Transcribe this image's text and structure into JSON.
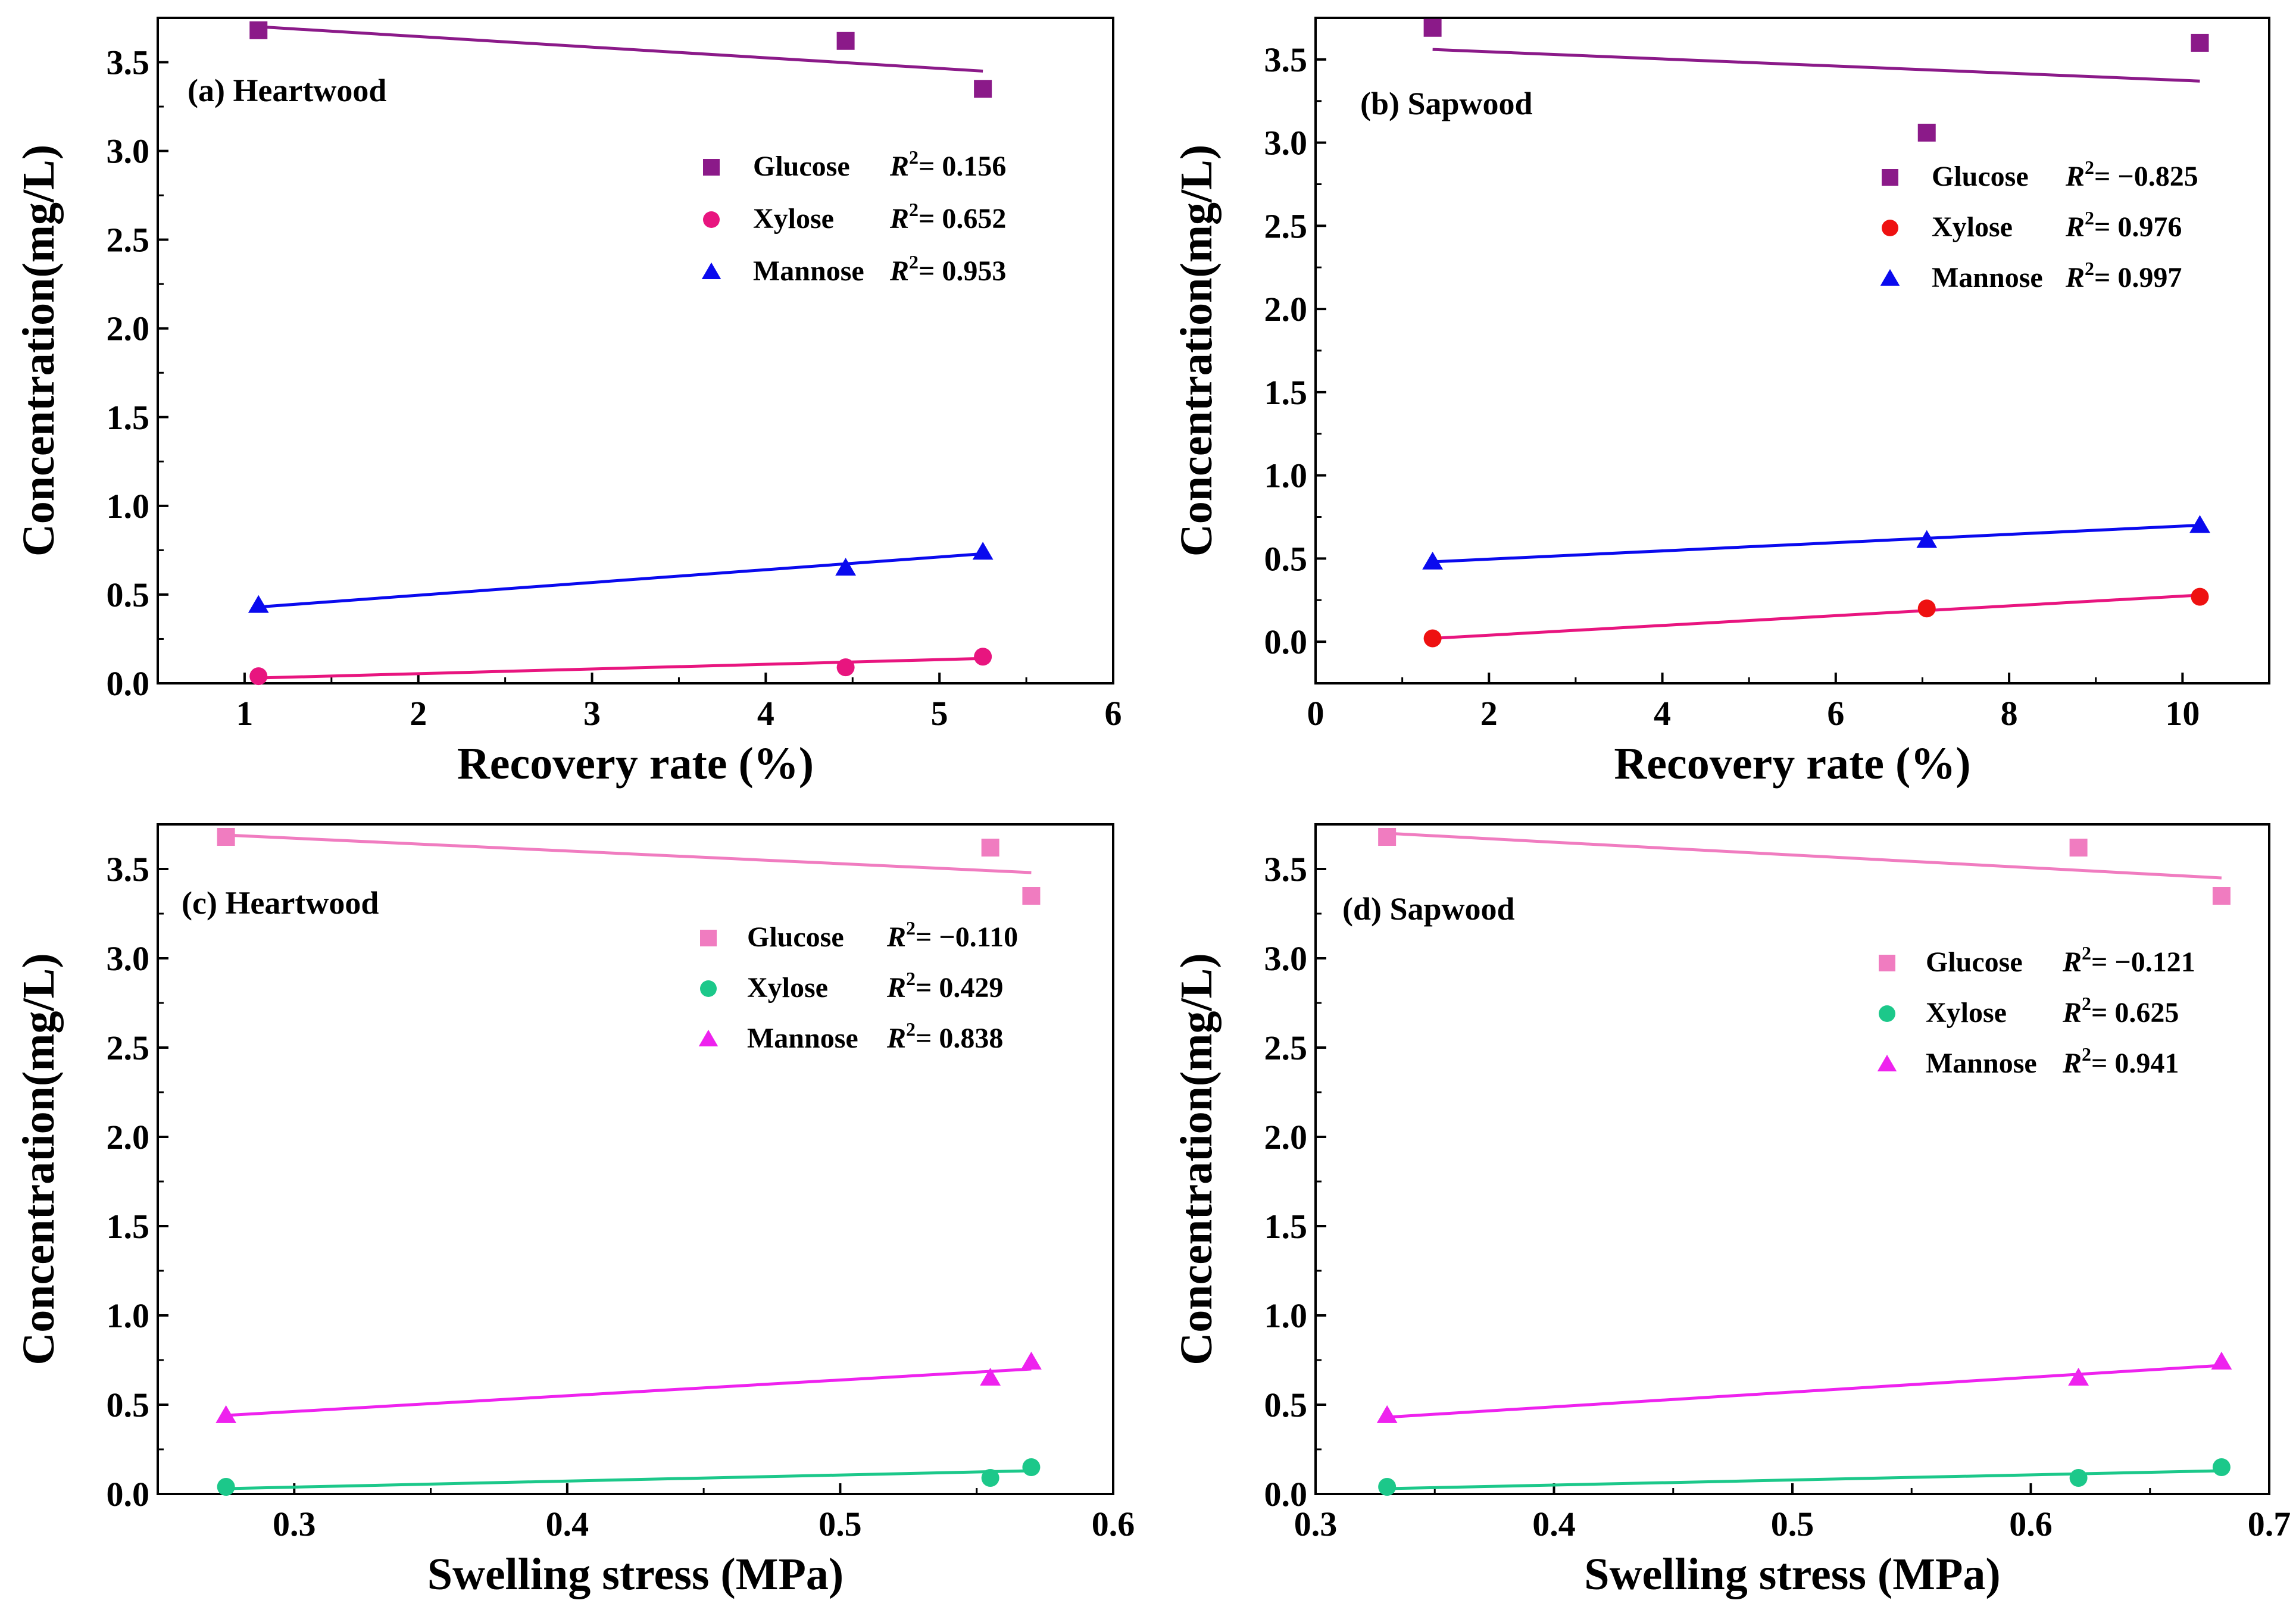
{
  "figure": {
    "legend_r2_symbol": "R",
    "legend_r2_exponent": "2",
    "legend_r2_equals": "="
  },
  "chart_data": [
    {
      "type": "scatter",
      "panel_id": "a",
      "title": "(a) Heartwood",
      "xlabel": "Recovery rate (%)",
      "ylabel": "Concentration(mg/L)",
      "xlim": [
        0.5,
        6
      ],
      "ylim": [
        0,
        3.75
      ],
      "xticks": [
        1,
        2,
        3,
        4,
        5,
        6
      ],
      "xtick_labels": [
        "1",
        "2",
        "3",
        "4",
        "5",
        "6"
      ],
      "yticks": [
        0.0,
        0.5,
        1.0,
        1.5,
        2.0,
        2.5,
        3.0,
        3.5
      ],
      "ytick_labels": [
        "0.0",
        "0.5",
        "1.0",
        "1.5",
        "2.0",
        "2.5",
        "3.0",
        "3.5"
      ],
      "grid": false,
      "legend_position": "upper-right",
      "series": [
        {
          "name": "Glucose",
          "r2": "0.156",
          "marker": "square",
          "color": "#8B1A89",
          "points": [
            [
              1.08,
              3.68
            ],
            [
              4.46,
              3.62
            ],
            [
              5.25,
              3.35
            ]
          ],
          "fit": [
            [
              1.08,
              3.7
            ],
            [
              5.25,
              3.45
            ]
          ]
        },
        {
          "name": "Xylose",
          "r2": "0.652",
          "marker": "circle",
          "color": "#E8157F",
          "points": [
            [
              1.08,
              0.04
            ],
            [
              4.46,
              0.09
            ],
            [
              5.25,
              0.15
            ]
          ],
          "fit": [
            [
              1.08,
              0.03
            ],
            [
              5.25,
              0.14
            ]
          ]
        },
        {
          "name": "Mannose",
          "r2": "0.953",
          "marker": "triangle",
          "color": "#0A0AEE",
          "points": [
            [
              1.08,
              0.44
            ],
            [
              4.46,
              0.65
            ],
            [
              5.25,
              0.74
            ]
          ],
          "fit": [
            [
              1.08,
              0.43
            ],
            [
              5.25,
              0.73
            ]
          ]
        }
      ]
    },
    {
      "type": "scatter",
      "panel_id": "b",
      "title": "(b) Sapwood",
      "xlabel": "Recovery rate (%)",
      "ylabel": "Concentration(mg/L)",
      "xlim": [
        0,
        11
      ],
      "ylim": [
        -0.25,
        3.75
      ],
      "xticks": [
        0,
        2,
        4,
        6,
        8,
        10
      ],
      "xtick_labels": [
        "0",
        "2",
        "4",
        "6",
        "8",
        "10"
      ],
      "yticks": [
        0.0,
        0.5,
        1.0,
        1.5,
        2.0,
        2.5,
        3.0,
        3.5
      ],
      "ytick_labels": [
        "0.0",
        "0.5",
        "1.0",
        "1.5",
        "2.0",
        "2.5",
        "3.0",
        "3.5"
      ],
      "grid": false,
      "legend_position": "upper-right",
      "series": [
        {
          "name": "Glucose",
          "r2": "−0.825",
          "marker": "square",
          "color": "#8B1A89",
          "points": [
            [
              1.35,
              3.69
            ],
            [
              7.05,
              3.06
            ],
            [
              10.2,
              3.6
            ]
          ],
          "fit": [
            [
              1.35,
              3.56
            ],
            [
              10.2,
              3.37
            ]
          ]
        },
        {
          "name": "Xylose",
          "r2": " 0.976",
          "marker": "circle",
          "color": "#EE1111",
          "points": [
            [
              1.35,
              0.02
            ],
            [
              7.05,
              0.2
            ],
            [
              10.2,
              0.27
            ]
          ],
          "fit": [
            [
              1.35,
              0.02
            ],
            [
              10.2,
              0.28
            ]
          ]
        },
        {
          "name": "Mannose",
          "r2": " 0.997",
          "marker": "triangle",
          "color": "#0A0AEE",
          "points": [
            [
              1.35,
              0.48
            ],
            [
              7.05,
              0.61
            ],
            [
              10.2,
              0.7
            ]
          ],
          "fit": [
            [
              1.35,
              0.48
            ],
            [
              10.2,
              0.7
            ]
          ]
        }
      ],
      "line_color_overrides": {
        "Xylose": "#E8157F"
      }
    },
    {
      "type": "scatter",
      "panel_id": "c",
      "title": "(c) Heartwood",
      "xlabel": "Swelling stress (MPa)",
      "ylabel": "Concentration(mg/L)",
      "xlim": [
        0.25,
        0.6
      ],
      "ylim": [
        0,
        3.75
      ],
      "xticks": [
        0.3,
        0.4,
        0.5,
        0.6
      ],
      "xtick_labels": [
        "0.3",
        "0.4",
        "0.5",
        "0.6"
      ],
      "yticks": [
        0.0,
        0.5,
        1.0,
        1.5,
        2.0,
        2.5,
        3.0,
        3.5
      ],
      "ytick_labels": [
        "0.0",
        "0.5",
        "1.0",
        "1.5",
        "2.0",
        "2.5",
        "3.0",
        "3.5"
      ],
      "grid": false,
      "legend_position": "upper-right",
      "series": [
        {
          "name": "Glucose",
          "r2": "−0.110",
          "marker": "square",
          "color": "#F07CC0",
          "points": [
            [
              0.275,
              3.68
            ],
            [
              0.555,
              3.62
            ],
            [
              0.57,
              3.35
            ]
          ],
          "fit": [
            [
              0.275,
              3.69
            ],
            [
              0.57,
              3.48
            ]
          ]
        },
        {
          "name": "Xylose",
          "r2": " 0.429",
          "marker": "circle",
          "color": "#1CC88A",
          "points": [
            [
              0.275,
              0.04
            ],
            [
              0.555,
              0.09
            ],
            [
              0.57,
              0.15
            ]
          ],
          "fit": [
            [
              0.275,
              0.03
            ],
            [
              0.57,
              0.13
            ]
          ]
        },
        {
          "name": "Mannose",
          "r2": " 0.838",
          "marker": "triangle",
          "color": "#EE22EE",
          "points": [
            [
              0.275,
              0.44
            ],
            [
              0.555,
              0.65
            ],
            [
              0.57,
              0.74
            ]
          ],
          "fit": [
            [
              0.275,
              0.44
            ],
            [
              0.57,
              0.7
            ]
          ]
        }
      ]
    },
    {
      "type": "scatter",
      "panel_id": "d",
      "title": "(d) Sapwood",
      "xlabel": "Swelling stress (MPa)",
      "ylabel": "Concentration(mg/L)",
      "xlim": [
        0.3,
        0.7
      ],
      "ylim": [
        0,
        3.75
      ],
      "xticks": [
        0.3,
        0.4,
        0.5,
        0.6,
        0.7
      ],
      "xtick_labels": [
        "0.3",
        "0.4",
        "0.5",
        "0.6",
        "0.7"
      ],
      "yticks": [
        0.0,
        0.5,
        1.0,
        1.5,
        2.0,
        2.5,
        3.0,
        3.5
      ],
      "ytick_labels": [
        "0.0",
        "0.5",
        "1.0",
        "1.5",
        "2.0",
        "2.5",
        "3.0",
        "3.5"
      ],
      "grid": false,
      "legend_position": "upper-right",
      "series": [
        {
          "name": "Glucose",
          "r2": "−0.121",
          "marker": "square",
          "color": "#F07CC0",
          "points": [
            [
              0.33,
              3.68
            ],
            [
              0.62,
              3.62
            ],
            [
              0.68,
              3.35
            ]
          ],
          "fit": [
            [
              0.33,
              3.7
            ],
            [
              0.68,
              3.45
            ]
          ]
        },
        {
          "name": "Xylose",
          "r2": "0.625",
          "marker": "circle",
          "color": "#1CC88A",
          "points": [
            [
              0.33,
              0.04
            ],
            [
              0.62,
              0.09
            ],
            [
              0.68,
              0.15
            ]
          ],
          "fit": [
            [
              0.33,
              0.03
            ],
            [
              0.68,
              0.13
            ]
          ]
        },
        {
          "name": "Mannose",
          "r2": "0.941",
          "marker": "triangle",
          "color": "#EE22EE",
          "points": [
            [
              0.33,
              0.44
            ],
            [
              0.62,
              0.65
            ],
            [
              0.68,
              0.74
            ]
          ],
          "fit": [
            [
              0.33,
              0.43
            ],
            [
              0.68,
              0.72
            ]
          ]
        }
      ]
    }
  ]
}
